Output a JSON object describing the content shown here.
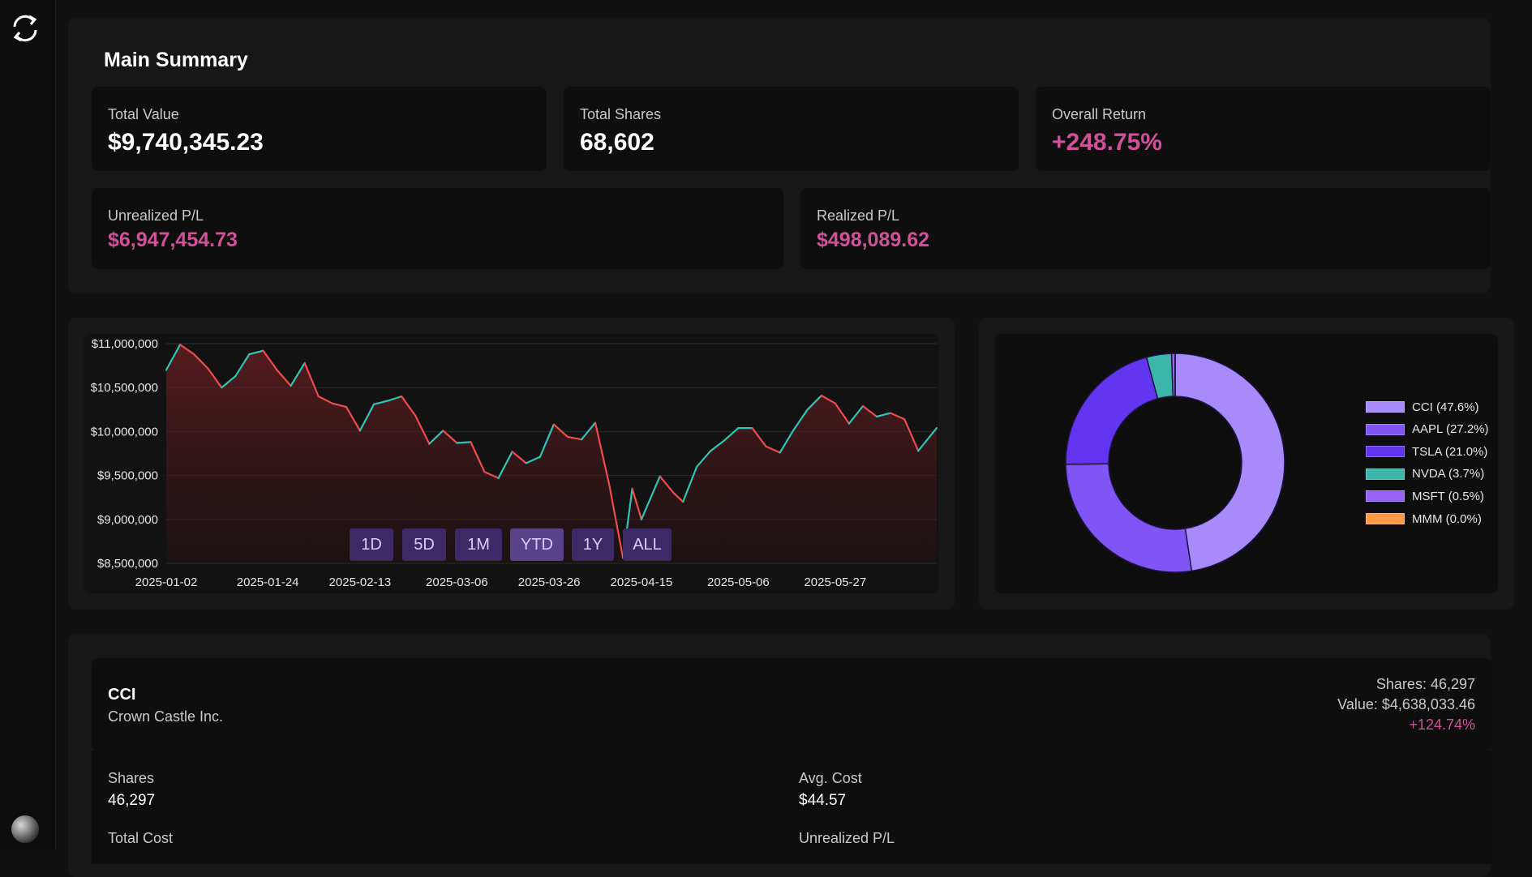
{
  "sidebar": {
    "logo_icon": "refresh-cycle-icon",
    "avatar_icon": "user-avatar"
  },
  "summary": {
    "title": "Main Summary",
    "total_value": {
      "label": "Total Value",
      "value": "$9,740,345.23"
    },
    "total_shares": {
      "label": "Total Shares",
      "value": "68,602"
    },
    "overall_return": {
      "label": "Overall Return",
      "value": "+248.75%"
    },
    "unrealized": {
      "label": "Unrealized P/L",
      "value": "$6,947,454.73"
    },
    "realized": {
      "label": "Realized P/L",
      "value": "$498,089.62"
    }
  },
  "colors": {
    "accent_pink": "#d0509a",
    "up": "#2fc4b4",
    "down": "#ef4b4b",
    "range_btn": "#3c2a66"
  },
  "range_buttons": [
    "1D",
    "5D",
    "1M",
    "YTD",
    "1Y",
    "ALL"
  ],
  "range_active": "YTD",
  "line_chart": {
    "type": "line",
    "yticks": [
      "$11,000,000",
      "$10,500,000",
      "$10,000,000",
      "$9,500,000",
      "$9,000,000",
      "$8,500,000"
    ],
    "xticks": [
      "2025-01-02",
      "2025-01-24",
      "2025-02-13",
      "2025-03-06",
      "2025-03-26",
      "2025-04-15",
      "2025-05-06",
      "2025-05-27"
    ],
    "ylim": [
      8500000,
      11000000
    ],
    "x_range": [
      "2025-01-02",
      "2025-06-18"
    ],
    "series": [
      [
        "2025-01-02",
        10700000
      ],
      [
        "2025-01-05",
        10990000
      ],
      [
        "2025-01-08",
        10880000
      ],
      [
        "2025-01-11",
        10720000
      ],
      [
        "2025-01-14",
        10500000
      ],
      [
        "2025-01-17",
        10630000
      ],
      [
        "2025-01-20",
        10880000
      ],
      [
        "2025-01-23",
        10920000
      ],
      [
        "2025-01-26",
        10700000
      ],
      [
        "2025-01-29",
        10520000
      ],
      [
        "2025-02-01",
        10780000
      ],
      [
        "2025-02-04",
        10400000
      ],
      [
        "2025-02-07",
        10320000
      ],
      [
        "2025-02-10",
        10280000
      ],
      [
        "2025-02-13",
        10010000
      ],
      [
        "2025-02-16",
        10310000
      ],
      [
        "2025-02-19",
        10350000
      ],
      [
        "2025-02-22",
        10400000
      ],
      [
        "2025-02-25",
        10180000
      ],
      [
        "2025-02-28",
        9860000
      ],
      [
        "2025-03-03",
        10010000
      ],
      [
        "2025-03-06",
        9870000
      ],
      [
        "2025-03-09",
        9880000
      ],
      [
        "2025-03-12",
        9540000
      ],
      [
        "2025-03-15",
        9470000
      ],
      [
        "2025-03-18",
        9770000
      ],
      [
        "2025-03-21",
        9640000
      ],
      [
        "2025-03-24",
        9710000
      ],
      [
        "2025-03-27",
        10080000
      ],
      [
        "2025-03-30",
        9940000
      ],
      [
        "2025-04-02",
        9910000
      ],
      [
        "2025-04-05",
        10100000
      ],
      [
        "2025-04-08",
        9400000
      ],
      [
        "2025-04-11",
        8560000
      ],
      [
        "2025-04-13",
        9350000
      ],
      [
        "2025-04-15",
        9000000
      ],
      [
        "2025-04-19",
        9490000
      ],
      [
        "2025-04-22",
        9300000
      ],
      [
        "2025-04-24",
        9200000
      ],
      [
        "2025-04-27",
        9600000
      ],
      [
        "2025-04-30",
        9780000
      ],
      [
        "2025-05-03",
        9900000
      ],
      [
        "2025-05-06",
        10040000
      ],
      [
        "2025-05-09",
        10040000
      ],
      [
        "2025-05-12",
        9830000
      ],
      [
        "2025-05-15",
        9760000
      ],
      [
        "2025-05-18",
        10020000
      ],
      [
        "2025-05-21",
        10250000
      ],
      [
        "2025-05-24",
        10410000
      ],
      [
        "2025-05-27",
        10320000
      ],
      [
        "2025-05-30",
        10090000
      ],
      [
        "2025-06-02",
        10290000
      ],
      [
        "2025-06-05",
        10170000
      ],
      [
        "2025-06-08",
        10210000
      ],
      [
        "2025-06-11",
        10140000
      ],
      [
        "2025-06-14",
        9780000
      ],
      [
        "2025-06-18",
        10040000
      ]
    ]
  },
  "pie_chart": {
    "type": "pie",
    "slices": [
      {
        "label": "CCI (47.6%)",
        "value": 47.6,
        "color": "#a78bfa"
      },
      {
        "label": "AAPL (27.2%)",
        "value": 27.2,
        "color": "#8155f5"
      },
      {
        "label": "TSLA (21.0%)",
        "value": 21.0,
        "color": "#6236f1"
      },
      {
        "label": "NVDA (3.7%)",
        "value": 3.7,
        "color": "#3cb6a8"
      },
      {
        "label": "MSFT (0.5%)",
        "value": 0.5,
        "color": "#9a63f7"
      },
      {
        "label": "MMM (0.0%)",
        "value": 0.02,
        "color": "#fb9b4a"
      }
    ]
  },
  "holding": {
    "ticker": "CCI",
    "name": "Crown Castle Inc.",
    "shares_meta": "Shares: 46,297",
    "value_meta": "Value: $4,638,033.46",
    "return_meta": "+124.74%",
    "shares_label": "Shares",
    "shares_value": "46,297",
    "avg_cost_label": "Avg. Cost",
    "avg_cost_value": "$44.57",
    "total_cost_label": "Total Cost",
    "unrealized_label": "Unrealized P/L"
  }
}
